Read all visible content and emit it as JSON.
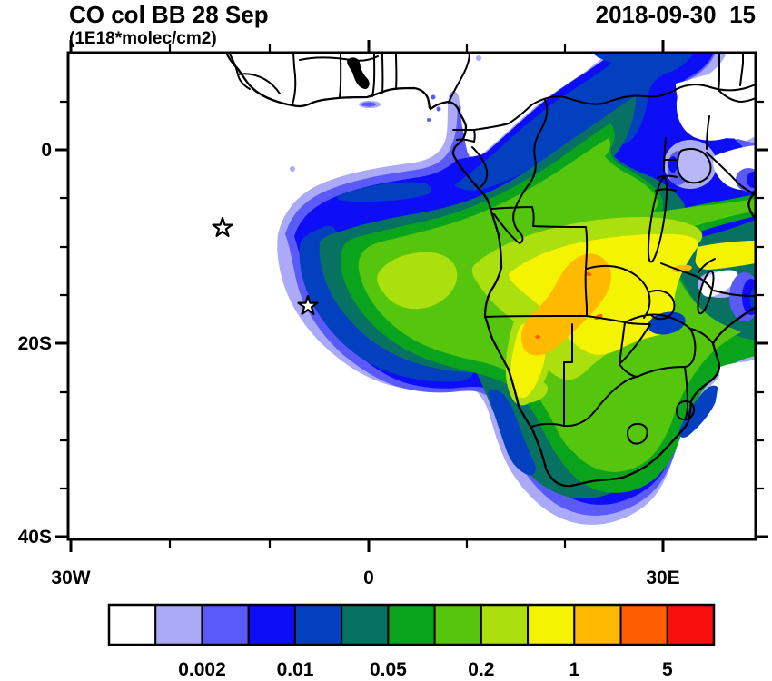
{
  "header": {
    "title": "CO col BB 28 Sep",
    "subtitle": "(1E18*molec/cm2)",
    "datetime": "2018-09-30_15"
  },
  "axes": {
    "y_ticks": [
      "0",
      "20S",
      "40S"
    ],
    "x_ticks": [
      "30W",
      "0",
      "30E"
    ]
  },
  "colorbar": {
    "labels": [
      "0.002",
      "0.01",
      "0.05",
      "0.2",
      "1",
      "5"
    ],
    "colors": [
      "#ffffff",
      "#aaaaf8",
      "#5a5af8",
      "#0d0df8",
      "#0340c0",
      "#077261",
      "#09a41b",
      "#55c60d",
      "#abdf0e",
      "#f4f400",
      "#ffba00",
      "#ff5e00",
      "#fa0f0f"
    ]
  },
  "chart_data": {
    "type": "heatmap",
    "title": "CO col BB 28 Sep",
    "subtitle_units": "1E18*molec/cm2",
    "timestamp": "2018-09-30_15",
    "projection": "cylindrical lat-lon map of Africa",
    "lon_range": [
      -30.5,
      39.2
    ],
    "lat_range": [
      -40.6,
      10.0
    ],
    "x_tick_lons": [
      -30,
      0,
      30
    ],
    "y_tick_lats": [
      0,
      -20,
      -40
    ],
    "minor_tick_step_deg": {
      "lon": 10,
      "lat": 5
    },
    "contour_levels": [
      0.001,
      0.002,
      0.005,
      0.01,
      0.02,
      0.05,
      0.1,
      0.2,
      0.5,
      1,
      2,
      5
    ],
    "palette": [
      "#ffffff",
      "#aaaaf8",
      "#5a5af8",
      "#0d0df8",
      "#0340c0",
      "#077261",
      "#09a41b",
      "#55c60d",
      "#abdf0e",
      "#f4f400",
      "#ffba00",
      "#ff5e00",
      "#fa0f0f"
    ],
    "legend_position": "bottom",
    "grid": false,
    "annotations": [
      {
        "symbol": "star",
        "approx_lon": -14.4,
        "approx_lat": -8.0,
        "note": "open star marker in Atlantic (Ascension Island area)"
      },
      {
        "symbol": "star",
        "approx_lon": -5.7,
        "approx_lat": -16.0,
        "note": "open star marker in Atlantic (St Helena area)"
      }
    ],
    "field_description": "CO column burden from biomass burning; broad plume over SE Atlantic and southern Africa; maximum (orange, 1-2E18) over Angola/Zambia around 18-24E, 10-17S; values >0.5E18 (yellow) across Angola, Zambia, Namibia, Botswana; mid values (green/teal 0.05-0.2) over DRC, South Africa and SE Atlantic plume; low values (blues < 0.02) fringe the plume north over equatorial Africa, east over Tanzania/Kenya and south of South Africa"
  }
}
